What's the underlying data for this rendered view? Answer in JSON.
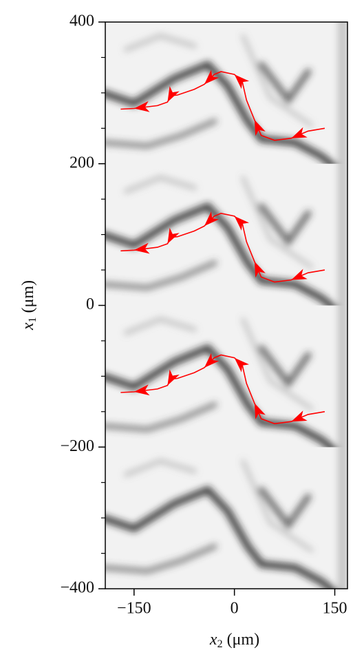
{
  "chart_data": {
    "type": "line",
    "x_label": {
      "symbol": "x",
      "subscript": "2",
      "unit": "(μm)"
    },
    "y_label": {
      "symbol": "x",
      "subscript": "1",
      "unit": "(μm)"
    },
    "xlim": [
      -193,
      169
    ],
    "ylim": [
      -400,
      400
    ],
    "xticks": [
      {
        "value": -150,
        "label": "−150"
      },
      0,
      150
    ],
    "yticks": [
      {
        "value": -400,
        "label": "−400"
      },
      {
        "value": -200,
        "label": "−200"
      },
      0,
      200,
      400
    ],
    "yminor_ticks": [
      -350,
      -300,
      -250,
      -150,
      -100,
      -50,
      50,
      100,
      150,
      250,
      300,
      350
    ],
    "series": [
      {
        "color": "#ff0000",
        "x": [
          135,
          110,
          85,
          60,
          40,
          30,
          18,
          12,
          0,
          -20,
          -30,
          -45,
          -60,
          -85,
          -95,
          -100,
          -115,
          -150,
          -170
        ],
        "values": [
          250,
          246,
          236,
          233,
          240,
          262,
          290,
          315,
          326,
          330,
          326,
          312,
          305,
          297,
          296,
          287,
          282,
          278,
          277
        ]
      },
      {
        "color": "#ff0000",
        "x": [
          135,
          110,
          85,
          60,
          40,
          30,
          18,
          12,
          0,
          -20,
          -30,
          -45,
          -60,
          -85,
          -95,
          -100,
          -115,
          -150,
          -170
        ],
        "values": [
          50,
          46,
          36,
          33,
          40,
          62,
          90,
          115,
          126,
          130,
          126,
          112,
          105,
          97,
          96,
          87,
          82,
          78,
          77
        ]
      },
      {
        "color": "#ff0000",
        "x": [
          135,
          110,
          85,
          60,
          40,
          30,
          18,
          12,
          0,
          -20,
          -30,
          -45,
          -60,
          -85,
          -95,
          -100,
          -115,
          -150,
          -170
        ],
        "values": [
          -150,
          -154,
          -164,
          -167,
          -160,
          -138,
          -110,
          -85,
          -74,
          -70,
          -74,
          -88,
          -95,
          -103,
          -104,
          -113,
          -118,
          -122,
          -123
        ]
      }
    ]
  }
}
